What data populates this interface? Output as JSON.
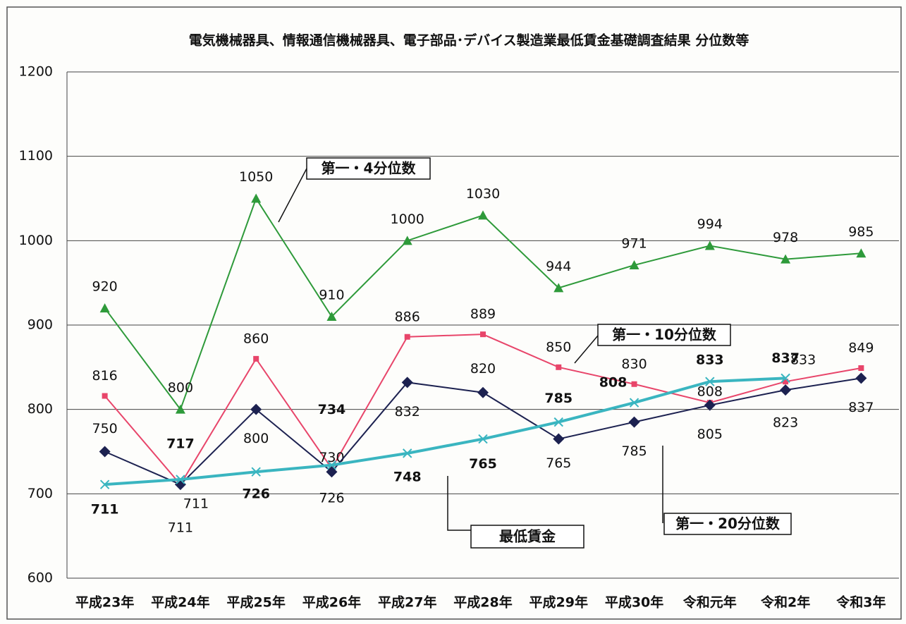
{
  "chart_data": {
    "type": "line",
    "title": "電気機械器具、情報通信機械器具、電子部品･デバイス製造業最低賃金基礎調査結果 分位数等",
    "categories": [
      "平成23年",
      "平成24年",
      "平成25年",
      "平成26年",
      "平成27年",
      "平成28年",
      "平成29年",
      "平成30年",
      "令和元年",
      "令和2年",
      "令和3年"
    ],
    "series": [
      {
        "name": "第一・4分位数",
        "color": "#2e9a3a",
        "marker": "triangle",
        "values": [
          920,
          800,
          1050,
          910,
          1000,
          1030,
          944,
          971,
          994,
          978,
          985
        ]
      },
      {
        "name": "第一・10分位数",
        "color": "#e8456a",
        "marker": "square",
        "values": [
          816,
          711,
          860,
          730,
          886,
          889,
          850,
          830,
          808,
          833,
          849
        ]
      },
      {
        "name": "第一・20分位数",
        "color": "#1c2150",
        "marker": "diamond",
        "values": [
          750,
          711,
          800,
          726,
          832,
          820,
          765,
          785,
          805,
          823,
          837
        ]
      },
      {
        "name": "最低賃金",
        "color": "#3ab5c0",
        "marker": "x",
        "values": [
          711,
          717,
          726,
          734,
          748,
          765,
          785,
          808,
          833,
          837,
          null
        ]
      }
    ],
    "ylim": [
      600,
      1200
    ],
    "yticks": [
      600,
      700,
      800,
      900,
      1000,
      1100,
      1200
    ],
    "grid": true
  }
}
